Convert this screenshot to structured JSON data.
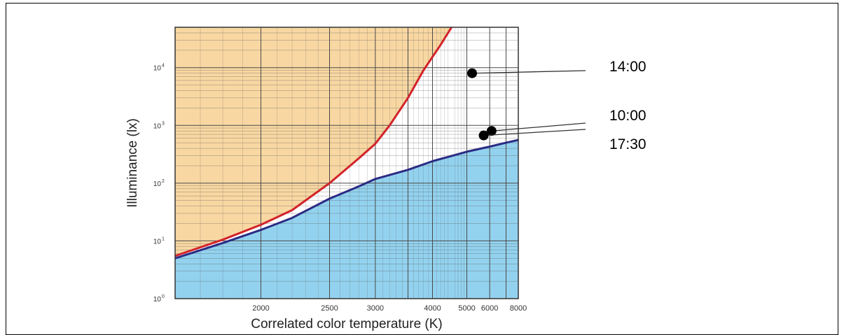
{
  "chart_data": {
    "type": "area",
    "xlabel": "Correlated color temperature (K)",
    "ylabel": "Illuminance (lx)",
    "x_scale": "reciprocal",
    "y_scale": "log",
    "xlim": [
      1600,
      8000
    ],
    "ylim": [
      1,
      50000
    ],
    "x_ticks": [
      {
        "value": 2000,
        "label": "2000"
      },
      {
        "value": 2500,
        "label": "2500"
      },
      {
        "value": 3000,
        "label": "3000"
      },
      {
        "value": 4000,
        "label": "4000"
      },
      {
        "value": 6000,
        "label": "6000"
      },
      {
        "value": 8000,
        "label": "8000"
      }
    ],
    "x_extra_labels": [
      {
        "value": 5000,
        "label": "5000"
      }
    ],
    "y_ticks": [
      {
        "value": 1,
        "base": "10",
        "exp": "0"
      },
      {
        "value": 10,
        "base": "10",
        "exp": "1"
      },
      {
        "value": 100,
        "base": "10",
        "exp": "2"
      },
      {
        "value": 1000,
        "base": "10",
        "exp": "3"
      },
      {
        "value": 10000,
        "base": "10",
        "exp": "4"
      }
    ],
    "grid": true,
    "colors": {
      "upper_region": "#f8d7a2",
      "lower_region": "#93d2ee",
      "upper_curve": "#d3232a",
      "lower_curve": "#2b2b84",
      "grid": "#4a4a4a"
    },
    "series": [
      {
        "kind": "boundary-upper",
        "points": [
          [
            1600,
            5.5
          ],
          [
            1800,
            10.5
          ],
          [
            2000,
            19
          ],
          [
            2200,
            34
          ],
          [
            2500,
            100
          ],
          [
            2800,
            270
          ],
          [
            3000,
            480
          ],
          [
            3200,
            1000
          ],
          [
            3500,
            3000
          ],
          [
            3800,
            9000
          ],
          [
            4200,
            25000
          ],
          [
            4500,
            50000
          ]
        ]
      },
      {
        "kind": "boundary-lower",
        "points": [
          [
            1600,
            5
          ],
          [
            1800,
            9.2
          ],
          [
            2000,
            15.5
          ],
          [
            2200,
            25
          ],
          [
            2500,
            54
          ],
          [
            2800,
            88
          ],
          [
            3000,
            118
          ],
          [
            3500,
            170
          ],
          [
            4000,
            240
          ],
          [
            5000,
            350
          ],
          [
            6000,
            430
          ],
          [
            7000,
            500
          ],
          [
            8000,
            560
          ]
        ]
      }
    ],
    "annotations": [
      {
        "label": "14:00",
        "cct": 5200,
        "lux": 8000
      },
      {
        "label": "10:00",
        "cct": 6100,
        "lux": 800
      },
      {
        "label": "17:30",
        "cct": 5700,
        "lux": 670
      }
    ]
  }
}
